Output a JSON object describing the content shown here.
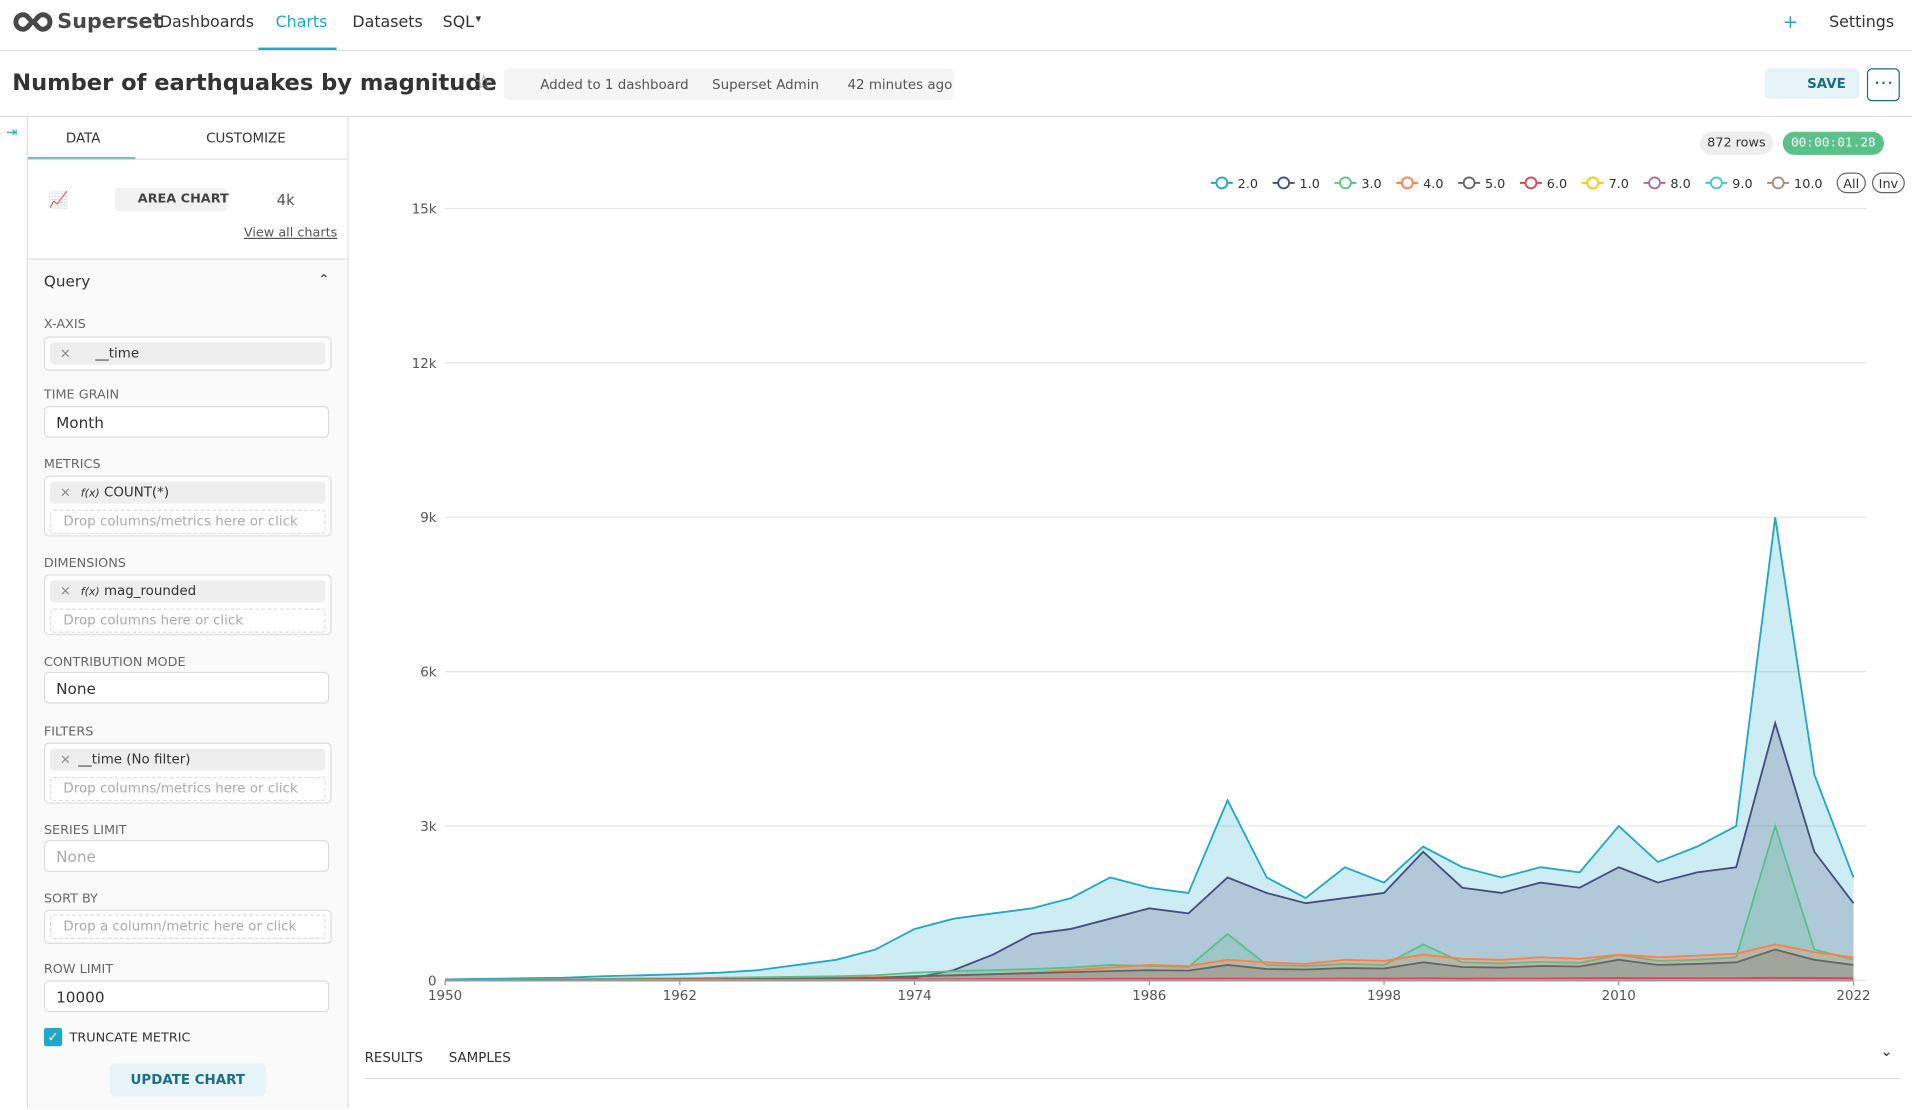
{
  "nav": {
    "brand": "Superset",
    "items": [
      "Dashboards",
      "Charts",
      "Datasets",
      "SQL"
    ],
    "plus": "+",
    "settings": "Settings"
  },
  "title_bar": {
    "title": "Number of earthquakes by magnitude",
    "added": "Added to 1 dashboard",
    "owner": "Superset Admin",
    "modified": "42 minutes ago",
    "save": "SAVE"
  },
  "panel": {
    "tabs": [
      "DATA",
      "CUSTOMIZE"
    ],
    "viz_type": "AREA CHART",
    "viz_4k": "4k",
    "view_all": "View all charts",
    "section": "Query",
    "x_axis": {
      "label": "X-AXIS",
      "value": "__time"
    },
    "time_grain": {
      "label": "TIME GRAIN",
      "value": "Month"
    },
    "metrics": {
      "label": "METRICS",
      "fx": "f(x)",
      "value": "COUNT(*)",
      "placeholder": "Drop columns/metrics here or click"
    },
    "dimensions": {
      "label": "DIMENSIONS",
      "fx": "f(x)",
      "value": "mag_rounded",
      "placeholder": "Drop columns here or click"
    },
    "contribution": {
      "label": "CONTRIBUTION MODE",
      "value": "None"
    },
    "filters": {
      "label": "FILTERS",
      "value": "__time (No filter)",
      "placeholder": "Drop columns/metrics here or click"
    },
    "series_limit": {
      "label": "SERIES LIMIT",
      "value": "None"
    },
    "sort_by": {
      "label": "SORT BY",
      "placeholder": "Drop a column/metric here or click"
    },
    "row_limit": {
      "label": "ROW LIMIT",
      "value": "10000"
    },
    "truncate": "TRUNCATE METRIC",
    "update": "UPDATE CHART"
  },
  "status": {
    "rows": "872 rows",
    "time": "00:00:01.28"
  },
  "chart_data": {
    "type": "area",
    "x": [
      1950,
      1952,
      1954,
      1956,
      1958,
      1960,
      1962,
      1964,
      1966,
      1968,
      1970,
      1972,
      1974,
      1976,
      1978,
      1980,
      1982,
      1984,
      1986,
      1988,
      1990,
      1992,
      1994,
      1996,
      1998,
      2000,
      2002,
      2004,
      2006,
      2008,
      2010,
      2012,
      2014,
      2016,
      2018,
      2020,
      2022
    ],
    "xlim": [
      1950,
      2022
    ],
    "xticks": [
      1950,
      1962,
      1974,
      1986,
      1998,
      2010,
      2022
    ],
    "ylim": [
      0,
      15000
    ],
    "yticks": [
      {
        "value": 0,
        "label": "0"
      },
      {
        "value": 3000,
        "label": "3k"
      },
      {
        "value": 6000,
        "label": "6k"
      },
      {
        "value": 9000,
        "label": "9k"
      },
      {
        "value": 12000,
        "label": "12k"
      },
      {
        "value": 15000,
        "label": "15k"
      }
    ],
    "grid": true,
    "legend": "top-right",
    "legend_buttons": [
      "All",
      "Inv"
    ],
    "series": [
      {
        "name": "2.0",
        "color": "#1FA8C9",
        "values": [
          20,
          30,
          40,
          50,
          80,
          100,
          120,
          150,
          200,
          300,
          400,
          600,
          1000,
          1200,
          1300,
          1400,
          1600,
          2000,
          1800,
          1700,
          3500,
          2000,
          1600,
          2200,
          1900,
          2600,
          2200,
          2000,
          2200,
          2100,
          3000,
          2300,
          2600,
          3000,
          9000,
          4000,
          2000
        ]
      },
      {
        "name": "1.0",
        "color": "#454E7C",
        "values": [
          0,
          0,
          0,
          0,
          0,
          0,
          0,
          0,
          0,
          0,
          10,
          20,
          50,
          200,
          500,
          900,
          1000,
          1200,
          1400,
          1300,
          2000,
          1700,
          1500,
          1600,
          1700,
          2500,
          1800,
          1700,
          1900,
          1800,
          2200,
          1900,
          2100,
          2200,
          5000,
          2500,
          1500
        ]
      },
      {
        "name": "3.0",
        "color": "#5AC189",
        "values": [
          10,
          15,
          20,
          20,
          30,
          40,
          40,
          50,
          60,
          70,
          80,
          100,
          150,
          180,
          200,
          220,
          250,
          300,
          280,
          260,
          900,
          300,
          280,
          320,
          300,
          700,
          350,
          330,
          360,
          340,
          500,
          380,
          400,
          450,
          3000,
          600,
          400
        ]
      },
      {
        "name": "4.0",
        "color": "#FF7F44",
        "values": [
          5,
          10,
          10,
          15,
          20,
          20,
          25,
          30,
          30,
          40,
          50,
          60,
          80,
          100,
          120,
          150,
          200,
          250,
          300,
          280,
          400,
          350,
          320,
          400,
          380,
          500,
          420,
          400,
          450,
          420,
          500,
          450,
          480,
          520,
          700,
          550,
          450
        ]
      },
      {
        "name": "5.0",
        "color": "#666666",
        "values": [
          5,
          5,
          10,
          10,
          15,
          15,
          20,
          20,
          25,
          30,
          40,
          50,
          80,
          100,
          120,
          140,
          160,
          180,
          200,
          190,
          300,
          220,
          210,
          240,
          230,
          350,
          260,
          250,
          280,
          270,
          400,
          300,
          320,
          350,
          600,
          400,
          300
        ]
      },
      {
        "name": "6.0",
        "color": "#E04355",
        "values": [
          5,
          10,
          5,
          5,
          10,
          10,
          10,
          10,
          10,
          15,
          15,
          20,
          20,
          20,
          25,
          25,
          25,
          30,
          30,
          30,
          35,
          30,
          30,
          35,
          35,
          40,
          35,
          35,
          35,
          40,
          45,
          40,
          40,
          40,
          50,
          45,
          40
        ]
      },
      {
        "name": "7.0",
        "color": "#FCC700",
        "values": [
          2,
          3,
          3,
          3,
          3,
          4,
          4,
          4,
          4,
          5,
          5,
          5,
          5,
          5,
          5,
          5,
          5,
          5,
          5,
          5,
          6,
          5,
          5,
          6,
          5,
          6,
          5,
          6,
          6,
          6,
          7,
          6,
          6,
          6,
          7,
          6,
          5
        ]
      },
      {
        "name": "8.0",
        "color": "#A868B7",
        "values": [
          0,
          0,
          0,
          1,
          0,
          1,
          1,
          0,
          1,
          1,
          1,
          1,
          1,
          1,
          1,
          1,
          1,
          1,
          1,
          1,
          1,
          1,
          1,
          1,
          1,
          1,
          1,
          1,
          1,
          1,
          1,
          1,
          1,
          1,
          1,
          1,
          1
        ]
      },
      {
        "name": "9.0",
        "color": "#3CCCCB",
        "values": [
          0,
          0,
          0,
          0,
          0,
          0,
          1,
          0,
          0,
          0,
          0,
          0,
          0,
          0,
          0,
          0,
          0,
          0,
          0,
          0,
          0,
          0,
          0,
          0,
          0,
          0,
          0,
          1,
          0,
          0,
          1,
          0,
          0,
          0,
          0,
          0,
          0
        ]
      },
      {
        "name": "10.0",
        "color": "#A38F79",
        "values": [
          0,
          0,
          0,
          0,
          0,
          0,
          0,
          0,
          0,
          0,
          0,
          0,
          0,
          0,
          0,
          0,
          0,
          0,
          0,
          0,
          0,
          0,
          0,
          0,
          0,
          0,
          0,
          0,
          0,
          0,
          0,
          0,
          0,
          0,
          0,
          0,
          0
        ]
      }
    ]
  },
  "results": {
    "tabs": [
      "RESULTS",
      "SAMPLES"
    ]
  }
}
